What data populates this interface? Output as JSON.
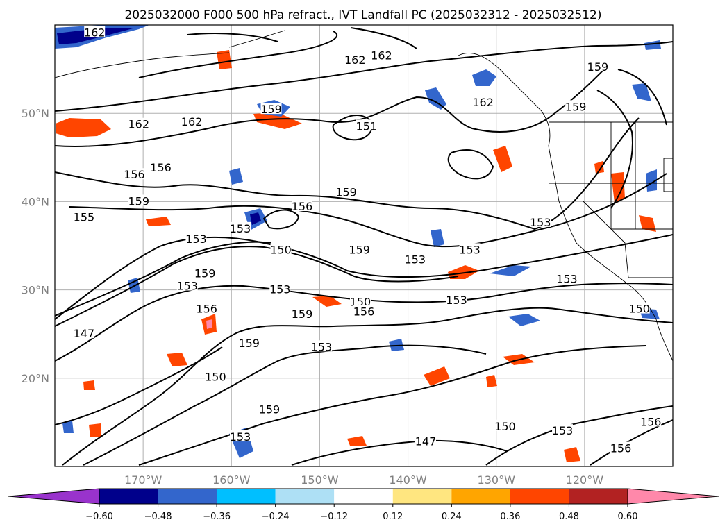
{
  "title": "2025032000 F000 500 hPa refract., IVT Landfall PC (2025032312 - 2025032512)",
  "map": {
    "lon_range": [
      -180,
      -110
    ],
    "lat_range": [
      10,
      60
    ],
    "lon_ticks": [
      {
        "value": -170,
        "label": "170°W"
      },
      {
        "value": -160,
        "label": "160°W"
      },
      {
        "value": -150,
        "label": "150°W"
      },
      {
        "value": -140,
        "label": "140°W"
      },
      {
        "value": -130,
        "label": "130°W"
      },
      {
        "value": -120,
        "label": "120°W"
      }
    ],
    "lat_ticks": [
      {
        "value": 20,
        "label": "20°N"
      },
      {
        "value": 30,
        "label": "30°N"
      },
      {
        "value": 40,
        "label": "40°N"
      },
      {
        "value": 50,
        "label": "50°N"
      }
    ],
    "grid": true
  },
  "contour_labels": [
    {
      "text": "162",
      "lon": -175.5,
      "lat": 59.1
    },
    {
      "text": "162",
      "lon": -146.0,
      "lat": 56.0
    },
    {
      "text": "162",
      "lon": -143.0,
      "lat": 56.5
    },
    {
      "text": "159",
      "lon": -118.5,
      "lat": 55.2
    },
    {
      "text": "162",
      "lon": -170.5,
      "lat": 48.7
    },
    {
      "text": "162",
      "lon": -164.5,
      "lat": 49.0
    },
    {
      "text": "159",
      "lon": -155.5,
      "lat": 50.4
    },
    {
      "text": "162",
      "lon": -131.5,
      "lat": 51.2
    },
    {
      "text": "159",
      "lon": -121.0,
      "lat": 50.7
    },
    {
      "text": "151",
      "lon": -144.7,
      "lat": 48.5
    },
    {
      "text": "156",
      "lon": -171.0,
      "lat": 43.0
    },
    {
      "text": "156",
      "lon": -168.0,
      "lat": 43.8
    },
    {
      "text": "159",
      "lon": -170.5,
      "lat": 40.0
    },
    {
      "text": "155",
      "lon": -176.7,
      "lat": 38.2
    },
    {
      "text": "159",
      "lon": -147.0,
      "lat": 41.0
    },
    {
      "text": "156",
      "lon": -152.0,
      "lat": 39.4
    },
    {
      "text": "153",
      "lon": -159.0,
      "lat": 36.9
    },
    {
      "text": "153",
      "lon": -164.0,
      "lat": 35.7
    },
    {
      "text": "153",
      "lon": -125.0,
      "lat": 37.6
    },
    {
      "text": "153",
      "lon": -133.0,
      "lat": 34.5
    },
    {
      "text": "150",
      "lon": -154.4,
      "lat": 34.5
    },
    {
      "text": "159",
      "lon": -145.5,
      "lat": 34.5
    },
    {
      "text": "153",
      "lon": -139.2,
      "lat": 33.4
    },
    {
      "text": "159",
      "lon": -163.0,
      "lat": 31.8
    },
    {
      "text": "153",
      "lon": -165.0,
      "lat": 30.4
    },
    {
      "text": "153",
      "lon": -122.0,
      "lat": 31.2
    },
    {
      "text": "153",
      "lon": -154.5,
      "lat": 30.0
    },
    {
      "text": "153",
      "lon": -134.5,
      "lat": 28.8
    },
    {
      "text": "150",
      "lon": -113.8,
      "lat": 27.8
    },
    {
      "text": "150",
      "lon": -145.4,
      "lat": 28.6
    },
    {
      "text": "156",
      "lon": -145.0,
      "lat": 27.5
    },
    {
      "text": "159",
      "lon": -152.0,
      "lat": 27.2
    },
    {
      "text": "156",
      "lon": -162.8,
      "lat": 27.8
    },
    {
      "text": "147",
      "lon": -176.7,
      "lat": 25.0
    },
    {
      "text": "159",
      "lon": -158.0,
      "lat": 23.9
    },
    {
      "text": "153",
      "lon": -149.8,
      "lat": 23.5
    },
    {
      "text": "150",
      "lon": -161.8,
      "lat": 20.1
    },
    {
      "text": "159",
      "lon": -155.7,
      "lat": 16.4
    },
    {
      "text": "153",
      "lon": -159.0,
      "lat": 13.3
    },
    {
      "text": "150",
      "lon": -129.0,
      "lat": 14.5
    },
    {
      "text": "147",
      "lon": -138.0,
      "lat": 12.8
    },
    {
      "text": "153",
      "lon": -122.5,
      "lat": 14.0
    },
    {
      "text": "156",
      "lon": -112.5,
      "lat": 15.0
    },
    {
      "text": "156",
      "lon": -115.9,
      "lat": 12.0
    }
  ],
  "colorbar": {
    "ticks": [
      "−0.60",
      "−0.48",
      "−0.36",
      "−0.24",
      "−0.12",
      "0.12",
      "0.24",
      "0.36",
      "0.48",
      "0.60"
    ],
    "colors": [
      "#9933cc",
      "#00008b",
      "#3366cc",
      "#00bfff",
      "#aee0f5",
      "#ffffff",
      "#ffe680",
      "#ffa500",
      "#ff4500",
      "#b22222",
      "#ff88aa"
    ]
  },
  "field_colors": {
    "neg_strong": "#00008b",
    "neg_mid": "#3366cc",
    "neg_weak": "#00bfff",
    "neg_faint": "#aee0f5",
    "pos_faint": "#ffe680",
    "pos_weak": "#ffa500",
    "pos_mid": "#ff4500",
    "pos_strong": "#b22222",
    "pos_max": "#ff88aa"
  }
}
